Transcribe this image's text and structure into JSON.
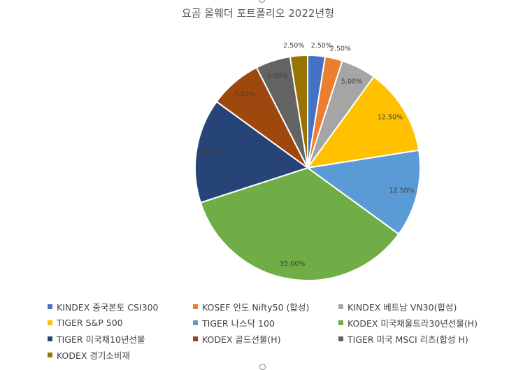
{
  "chart_data": {
    "type": "pie",
    "title": "요곰 올웨더 포트폴리오 2022년형",
    "slices": [
      {
        "name": "KINDEX 중국본토 CSI300",
        "value": 2.5,
        "label": "2.50%",
        "color": "#4472C4"
      },
      {
        "name": "KOSEF 인도 Nifty50 (합성)",
        "value": 2.5,
        "label": "2.50%",
        "color": "#ED7D31"
      },
      {
        "name": "KINDEX 베트남 VN30(합성)",
        "value": 5.0,
        "label": "5.00%",
        "color": "#A5A5A5"
      },
      {
        "name": "TIGER S&P 500",
        "value": 12.5,
        "label": "12.50%",
        "color": "#FFC000"
      },
      {
        "name": "TIGER 나스닥 100",
        "value": 12.5,
        "label": "12.50%",
        "color": "#5B9BD5"
      },
      {
        "name": "KODEX 미국채울트라30년선물(H)",
        "value": 35.0,
        "label": "35.00%",
        "color": "#70AD47"
      },
      {
        "name": "TIGER 미국채10년선물",
        "value": 15.0,
        "label": "15.00%",
        "color": "#264478"
      },
      {
        "name": "KODEX 골드선물(H)",
        "value": 7.5,
        "label": "7.50%",
        "color": "#9E480E"
      },
      {
        "name": "TIGER 미국 MSCI 리츠(합성 H)",
        "value": 5.0,
        "label": "5.00%",
        "color": "#636363"
      },
      {
        "name": "KODEX 경기소비재",
        "value": 2.5,
        "label": "2.50%",
        "color": "#997300"
      }
    ],
    "legend_position": "bottom"
  }
}
